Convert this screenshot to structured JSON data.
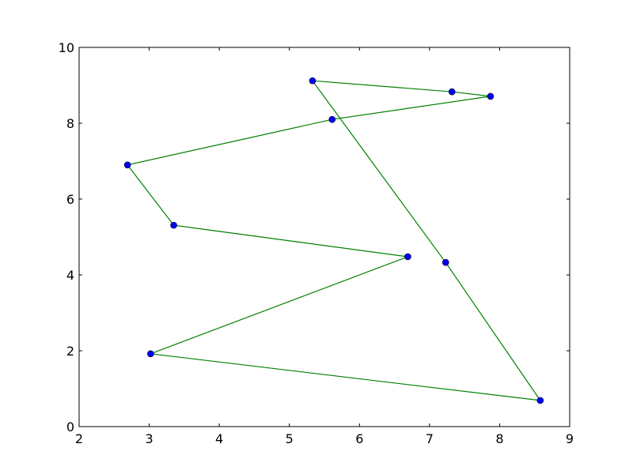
{
  "chart_data": {
    "type": "line",
    "title": "",
    "xlabel": "",
    "ylabel": "",
    "xlim": [
      2,
      9
    ],
    "ylim": [
      0,
      10
    ],
    "xticks": [
      "2",
      "3",
      "4",
      "5",
      "6",
      "7",
      "8",
      "9"
    ],
    "yticks": [
      "0",
      "2",
      "4",
      "6",
      "8",
      "10"
    ],
    "grid": false,
    "line_closed": true,
    "colors": {
      "line": "#008000",
      "marker": "#0000ff",
      "marker_edge": "#000000"
    },
    "series": [
      {
        "x": [
          5.33,
          7.32,
          7.87,
          5.61,
          2.69,
          3.35,
          6.69,
          3.02,
          8.58,
          7.23
        ],
        "y": [
          9.12,
          8.83,
          8.71,
          8.1,
          6.9,
          5.31,
          4.48,
          1.92,
          0.69,
          4.33
        ]
      }
    ]
  }
}
